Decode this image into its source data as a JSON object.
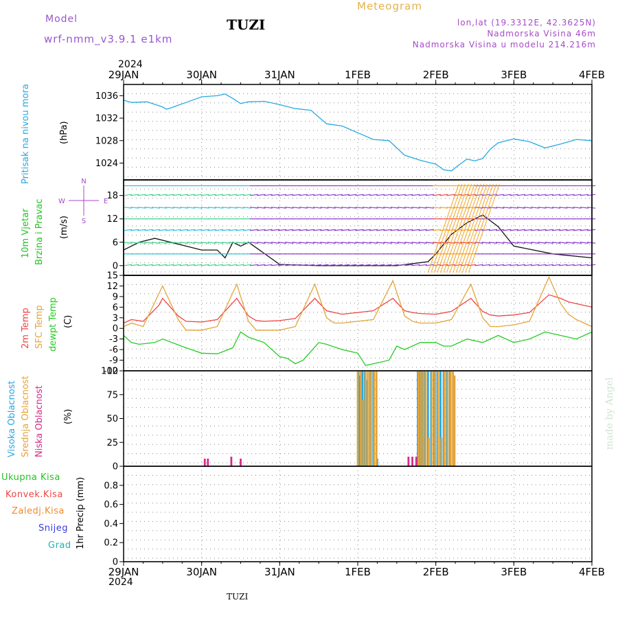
{
  "header": {
    "model_label": "Model",
    "model_value": "wrf-nmm_v3.9.1 e1km",
    "station": "TUZI",
    "title": "Meteogram",
    "coords": "lon,lat (19.3312E, 42.3625N)",
    "elevation": "Nadmorska Visina 46m",
    "model_elevation": "Nadmorska Visina u modelu 214.216m"
  },
  "time_axis": {
    "year": "2024",
    "labels": [
      "29JAN",
      "30JAN",
      "31JAN",
      "1FEB",
      "2FEB",
      "3FEB",
      "4FEB"
    ]
  },
  "footer": {
    "station": "TUZI",
    "credit": "made by Angel"
  },
  "colors": {
    "pressure": "#27a9e1",
    "wind_label": "#22c322",
    "temp2m": "#ee4444",
    "sfc_temp": "#e3a43a",
    "dewpt": "#22cc22",
    "cloud_high": "#2aa6e0",
    "cloud_mid": "#e3a43a",
    "cloud_low": "#d62a8a",
    "wind_compass": "#a64ac9"
  },
  "panels": {
    "pressure": {
      "label": "Pritisak na nivou mora",
      "unit": "(hPa)"
    },
    "wind": {
      "label1": "10m Vjetar",
      "label2": "Brzina i Pravac",
      "unit": "(m/s)",
      "compass_n": "N",
      "compass_w": "W",
      "compass_e": "E",
      "compass_s": "S"
    },
    "temp": {
      "label_2m": "2m Temp",
      "label_sfc": "SFC Temp",
      "label_dewpt": "dewpt Temp",
      "unit": "(C)"
    },
    "cloud": {
      "label_high": "Visoka Oblacnost",
      "label_mid": "Srednja Oblacnost",
      "label_low": "Niska Oblacnost",
      "unit": "(%)"
    },
    "precip": {
      "legend": [
        "Ukupna Kisa",
        "Konvek.Kisa",
        "Zaledj.Kisa",
        "Snijeg",
        "Grad"
      ],
      "legend_colors": [
        "#22c322",
        "#ee4444",
        "#f08a2a",
        "#3a3ae0",
        "#22b3b3"
      ],
      "unit": "1hr Precip (mm)"
    }
  },
  "chart_data": [
    {
      "type": "line",
      "name": "pressure",
      "ylim": [
        1021,
        1038
      ],
      "yticks": [
        1024,
        1028,
        1032,
        1036
      ],
      "series": [
        {
          "color": "#27a9e1",
          "x": [
            0,
            0.1,
            0.3,
            0.5,
            0.55,
            0.6,
            0.8,
            1.0,
            1.2,
            1.3,
            1.4,
            1.5,
            1.6,
            1.8,
            2.0,
            2.2,
            2.4,
            2.6,
            2.8,
            3.0,
            3.2,
            3.4,
            3.6,
            3.8,
            4.0,
            4.1,
            4.2,
            4.3,
            4.4,
            4.5,
            4.6,
            4.7,
            4.8,
            5.0,
            5.2,
            5.4,
            5.6,
            5.8,
            6.0
          ],
          "values": [
            1035.2,
            1034.8,
            1034.9,
            1034.0,
            1033.6,
            1033.8,
            1034.8,
            1035.8,
            1036.0,
            1036.3,
            1035.5,
            1034.6,
            1034.9,
            1035.0,
            1034.4,
            1033.7,
            1033.4,
            1031.0,
            1030.6,
            1029.4,
            1028.2,
            1028.0,
            1025.4,
            1024.5,
            1023.8,
            1022.8,
            1022.6,
            1023.7,
            1024.7,
            1024.4,
            1024.8,
            1026.5,
            1027.6,
            1028.3,
            1027.8,
            1026.7,
            1027.4,
            1028.2,
            1028.0
          ]
        }
      ]
    },
    {
      "type": "line",
      "name": "wind",
      "ylim": [
        -2.5,
        22
      ],
      "yticks": [
        0,
        6,
        12,
        18
      ],
      "series": [
        {
          "color": "#111111",
          "x": [
            0,
            0.2,
            0.4,
            0.6,
            0.8,
            1.0,
            1.2,
            1.3,
            1.4,
            1.5,
            1.6,
            2.0,
            2.5,
            3.0,
            3.5,
            3.9,
            4.0,
            4.2,
            4.4,
            4.6,
            4.8,
            5.0,
            5.5,
            6.0
          ],
          "values": [
            4,
            6,
            7,
            6,
            5,
            4,
            4,
            2,
            6,
            5,
            6,
            0.3,
            0,
            0,
            0,
            1,
            3,
            8,
            11,
            13,
            10,
            5,
            3,
            2
          ]
        }
      ]
    },
    {
      "type": "line",
      "name": "temperature",
      "ylim": [
        -12,
        15
      ],
      "yticks": [
        -12,
        -9,
        -6,
        -3,
        0,
        3,
        6,
        9,
        12,
        15
      ],
      "series": [
        {
          "name": "2m Temp",
          "color": "#ee4444",
          "x": [
            0,
            0.1,
            0.25,
            0.45,
            0.5,
            0.7,
            0.8,
            1.0,
            1.2,
            1.45,
            1.6,
            1.7,
            1.8,
            2.0,
            2.2,
            2.45,
            2.6,
            2.7,
            2.8,
            3.0,
            3.2,
            3.45,
            3.6,
            3.7,
            3.8,
            4.0,
            4.2,
            4.45,
            4.6,
            4.7,
            4.8,
            5.0,
            5.2,
            5.45,
            5.6,
            5.7,
            5.8,
            6.0
          ],
          "values": [
            1.5,
            2.5,
            2.0,
            6.5,
            8.5,
            3.5,
            2.0,
            1.8,
            2.5,
            8.5,
            3.5,
            2.2,
            2.0,
            2.2,
            2.8,
            8.5,
            5.0,
            4.5,
            4.0,
            4.5,
            5.0,
            8.5,
            5.0,
            4.5,
            4.2,
            4.0,
            4.8,
            8.5,
            4.8,
            3.8,
            3.5,
            3.8,
            4.5,
            9.5,
            8.5,
            7.5,
            7.0,
            6.0
          ]
        },
        {
          "name": "SFC Temp",
          "color": "#e3a43a",
          "x": [
            0,
            0.1,
            0.25,
            0.5,
            0.7,
            0.8,
            1.0,
            1.2,
            1.45,
            1.6,
            1.7,
            1.8,
            2.0,
            2.2,
            2.45,
            2.6,
            2.7,
            2.8,
            3.0,
            3.2,
            3.45,
            3.6,
            3.7,
            3.8,
            4.0,
            4.2,
            4.45,
            4.6,
            4.7,
            4.8,
            5.0,
            5.2,
            5.45,
            5.6,
            5.7,
            5.8,
            6.0
          ],
          "values": [
            0.5,
            1.5,
            0.5,
            12,
            2.5,
            -0.5,
            -0.5,
            0.5,
            12.5,
            2.0,
            -0.5,
            -0.5,
            -0.5,
            0.5,
            12.5,
            3.0,
            1.5,
            1.5,
            2.0,
            2.5,
            13.5,
            3.5,
            2.0,
            1.5,
            1.5,
            2.5,
            12.5,
            3.0,
            0.5,
            0.5,
            1.0,
            2.0,
            14.5,
            7.0,
            4.0,
            2.5,
            0.5
          ]
        },
        {
          "name": "dewpt Temp",
          "color": "#22cc22",
          "x": [
            0,
            0.1,
            0.2,
            0.4,
            0.5,
            0.8,
            1.0,
            1.2,
            1.4,
            1.5,
            1.6,
            1.8,
            2.0,
            2.1,
            2.2,
            2.3,
            2.5,
            2.6,
            2.8,
            3.0,
            3.1,
            3.2,
            3.4,
            3.5,
            3.6,
            3.8,
            4.0,
            4.1,
            4.2,
            4.4,
            4.6,
            4.8,
            5.0,
            5.2,
            5.4,
            5.6,
            5.8,
            6.0
          ],
          "values": [
            -2,
            -4,
            -4.5,
            -4,
            -3,
            -5.5,
            -7,
            -7.2,
            -5.5,
            -1,
            -2.5,
            -4,
            -8,
            -8.5,
            -10,
            -9,
            -4,
            -4.5,
            -6,
            -7,
            -10.5,
            -10,
            -9,
            -5,
            -6,
            -4,
            -4,
            -5,
            -5,
            -3,
            -4,
            -2,
            -4,
            -3,
            -1,
            -2,
            -3,
            -1
          ]
        }
      ]
    },
    {
      "type": "bar",
      "name": "cloud",
      "ylim": [
        0,
        100
      ],
      "yticks": [
        0,
        25,
        50,
        75,
        100
      ],
      "series": [
        {
          "name": "Visoka Oblacnost",
          "color": "#2aa6e0",
          "x": [
            3.01,
            3.03,
            3.06,
            3.09,
            3.12,
            3.16,
            3.2,
            3.25,
            3.77,
            3.8,
            3.83,
            3.86,
            3.9,
            3.94,
            3.98,
            4.02,
            4.06,
            4.1,
            4.14,
            4.18
          ],
          "values": [
            100,
            95,
            100,
            100,
            90,
            100,
            100,
            8,
            100,
            100,
            100,
            100,
            100,
            100,
            100,
            100,
            100,
            100,
            100,
            100
          ]
        },
        {
          "name": "Srednja Oblacnost",
          "color": "#e3a43a",
          "x": [
            3.0,
            3.04,
            3.07,
            3.1,
            3.13,
            3.17,
            3.21,
            3.24,
            3.78,
            3.81,
            3.84,
            3.87,
            3.91,
            3.95,
            3.99,
            4.03,
            4.07,
            4.11,
            4.15,
            4.19,
            4.22,
            4.24
          ],
          "values": [
            100,
            100,
            70,
            100,
            100,
            100,
            100,
            100,
            100,
            100,
            100,
            100,
            30,
            100,
            100,
            100,
            30,
            100,
            100,
            100,
            100,
            95
          ]
        },
        {
          "name": "Niska Oblacnost",
          "color": "#d62a8a",
          "x": [
            1.04,
            1.08,
            1.38,
            1.5,
            3.65,
            3.7,
            3.75
          ],
          "values": [
            8,
            8,
            10,
            8,
            10,
            10,
            10
          ]
        }
      ]
    },
    {
      "type": "line",
      "name": "precipitation",
      "ylim": [
        0,
        1.0
      ],
      "yticks": [
        0,
        0.2,
        0.4,
        0.6,
        0.8
      ],
      "series": [
        {
          "name": "Ukupna Kisa",
          "color": "#22c322",
          "x": [
            0,
            6
          ],
          "values": [
            0,
            0
          ]
        }
      ]
    }
  ]
}
